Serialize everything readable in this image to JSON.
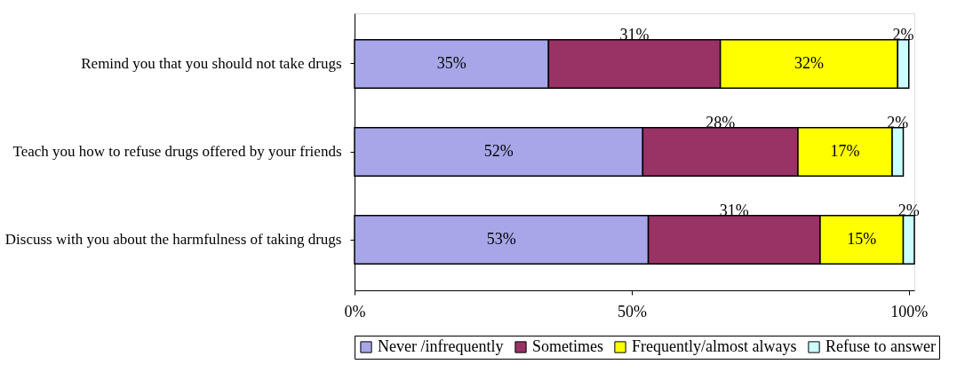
{
  "chart_data": {
    "type": "bar",
    "orientation": "horizontal",
    "stacked": true,
    "categories": [
      "Remind you that you should not take drugs",
      "Teach you how to refuse drugs offered by your friends",
      "Discuss with you about the harmfulness of taking drugs"
    ],
    "series": [
      {
        "name": "Never /infrequently",
        "color": "#a6a6e8",
        "values": [
          35,
          52,
          53
        ],
        "value_labels": [
          "35%",
          "52%",
          "53%"
        ]
      },
      {
        "name": "Sometimes",
        "color": "#993366",
        "values": [
          31,
          28,
          31
        ],
        "value_labels": [
          "31%",
          "28%",
          "31%"
        ]
      },
      {
        "name": "Frequently/almost always",
        "color": "#ffff00",
        "values": [
          32,
          17,
          15
        ],
        "value_labels": [
          "32%",
          "17%",
          "15%"
        ]
      },
      {
        "name": "Refuse to answer",
        "color": "#ccffff",
        "values": [
          2,
          2,
          2
        ],
        "value_labels": [
          "2%",
          "2%",
          "2%"
        ]
      }
    ],
    "xlim": [
      0,
      101
    ],
    "xticks": [
      {
        "value": 0,
        "label": "0%"
      },
      {
        "value": 50,
        "label": "50%"
      },
      {
        "value": 100,
        "label": "100%"
      }
    ],
    "grid": false,
    "legend": "bottom"
  }
}
